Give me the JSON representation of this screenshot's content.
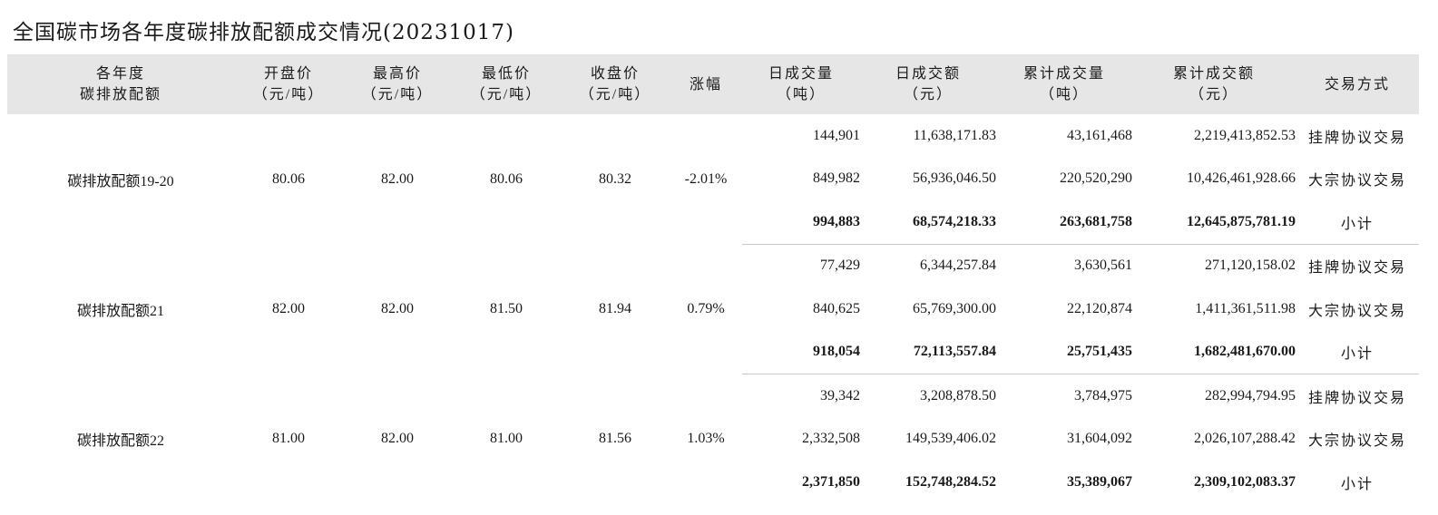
{
  "title": "全国碳市场各年度碳排放配额成交情况(20231017)",
  "headers": {
    "allowance_l1": "各年度",
    "allowance_l2": "碳排放配额",
    "open_l1": "开盘价",
    "open_l2": "（元/吨）",
    "high_l1": "最高价",
    "high_l2": "（元/吨）",
    "low_l1": "最低价",
    "low_l2": "（元/吨）",
    "close_l1": "收盘价",
    "close_l2": "（元/吨）",
    "change": "涨幅",
    "dvol_l1": "日成交量",
    "dvol_l2": "（吨）",
    "damt_l1": "日成交额",
    "damt_l2": "（元）",
    "cvol_l1": "累计成交量",
    "cvol_l2": "（吨）",
    "camt_l1": "累计成交额",
    "camt_l2": "（元）",
    "mode": "交易方式"
  },
  "groups": [
    {
      "name": "碳排放配额19-20",
      "open": "80.06",
      "high": "82.00",
      "low": "80.06",
      "close": "80.32",
      "change": "-2.01%",
      "rows": [
        {
          "daily_volume": "144,901",
          "daily_amount": "11,638,171.83",
          "cum_volume": "43,161,468",
          "cum_amount": "2,219,413,852.53",
          "mode": "挂牌协议交易"
        },
        {
          "daily_volume": "849,982",
          "daily_amount": "56,936,046.50",
          "cum_volume": "220,520,290",
          "cum_amount": "10,426,461,928.66",
          "mode": "大宗协议交易"
        },
        {
          "daily_volume": "994,883",
          "daily_amount": "68,574,218.33",
          "cum_volume": "263,681,758",
          "cum_amount": "12,645,875,781.19",
          "mode": "小计"
        }
      ]
    },
    {
      "name": "碳排放配额21",
      "open": "82.00",
      "high": "82.00",
      "low": "81.50",
      "close": "81.94",
      "change": "0.79%",
      "rows": [
        {
          "daily_volume": "77,429",
          "daily_amount": "6,344,257.84",
          "cum_volume": "3,630,561",
          "cum_amount": "271,120,158.02",
          "mode": "挂牌协议交易"
        },
        {
          "daily_volume": "840,625",
          "daily_amount": "65,769,300.00",
          "cum_volume": "22,120,874",
          "cum_amount": "1,411,361,511.98",
          "mode": "大宗协议交易"
        },
        {
          "daily_volume": "918,054",
          "daily_amount": "72,113,557.84",
          "cum_volume": "25,751,435",
          "cum_amount": "1,682,481,670.00",
          "mode": "小计"
        }
      ]
    },
    {
      "name": "碳排放配额22",
      "open": "81.00",
      "high": "82.00",
      "low": "81.00",
      "close": "81.56",
      "change": "1.03%",
      "rows": [
        {
          "daily_volume": "39,342",
          "daily_amount": "3,208,878.50",
          "cum_volume": "3,784,975",
          "cum_amount": "282,994,794.95",
          "mode": "挂牌协议交易"
        },
        {
          "daily_volume": "2,332,508",
          "daily_amount": "149,539,406.02",
          "cum_volume": "31,604,092",
          "cum_amount": "2,026,107,288.42",
          "mode": "大宗协议交易"
        },
        {
          "daily_volume": "2,371,850",
          "daily_amount": "152,748,284.52",
          "cum_volume": "35,389,067",
          "cum_amount": "2,309,102,083.37",
          "mode": "小计"
        }
      ]
    }
  ]
}
